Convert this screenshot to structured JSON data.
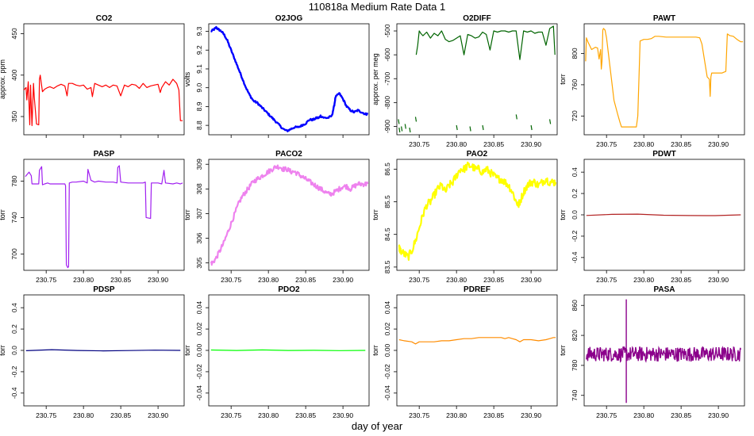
{
  "figure": {
    "title": "110818a   Medium Rate Data 1",
    "xlabel": "day of year"
  },
  "colors": {
    "CO2": "#ff0000",
    "O2JOG": "#0000ff",
    "O2DIFF": "#006400",
    "PAWT": "#ffa500",
    "PASP": "#a020f0",
    "PACO2": "#ee82ee",
    "PAO2": "#ffff00",
    "PDWT": "#b22222",
    "PDSP": "#000080",
    "PDO2": "#00ff00",
    "PDREF": "#ff8c00",
    "PASA": "#8b008b"
  },
  "chart_data": [
    {
      "id": "CO2",
      "type": "line",
      "title": "CO2",
      "ylabel": "approx. ppm",
      "color": "#ff0000",
      "xlim": [
        230.72,
        230.935
      ],
      "ylim": [
        328,
        462
      ],
      "xticks": [
        230.75,
        230.8,
        230.85,
        230.9
      ],
      "yticks": [
        350,
        400,
        450
      ],
      "xticks_labeled": false,
      "x": [
        230.72,
        230.723,
        230.724,
        230.726,
        230.728,
        230.729,
        230.731,
        230.733,
        230.734,
        230.737,
        230.74,
        230.741,
        230.742,
        230.745,
        230.748,
        230.752,
        230.755,
        230.76,
        230.765,
        230.77,
        230.775,
        230.778,
        230.78,
        230.785,
        230.79,
        230.795,
        230.8,
        230.805,
        230.81,
        230.812,
        230.815,
        230.82,
        230.825,
        230.83,
        230.835,
        230.84,
        230.845,
        230.85,
        230.855,
        230.86,
        230.865,
        230.87,
        230.875,
        230.88,
        230.885,
        230.89,
        230.895,
        230.9,
        230.903,
        230.905,
        230.91,
        230.915,
        230.92,
        230.925,
        230.928,
        230.93,
        230.933
      ],
      "y": [
        382,
        385,
        370,
        392,
        340,
        388,
        339,
        390,
        373,
        341,
        340,
        395,
        400,
        380,
        383,
        385,
        386,
        384,
        387,
        389,
        387,
        375,
        390,
        390,
        388,
        387,
        388,
        383,
        385,
        374,
        390,
        388,
        386,
        388,
        385,
        388,
        387,
        375,
        388,
        386,
        389,
        388,
        384,
        390,
        385,
        387,
        388,
        389,
        379,
        385,
        392,
        388,
        395,
        390,
        382,
        345,
        345
      ]
    },
    {
      "id": "O2JOG",
      "type": "line",
      "title": "O2JOG",
      "ylabel": "volts",
      "color": "#0000ff",
      "xlim": [
        230.72,
        230.935
      ],
      "ylim": [
        8.75,
        9.34
      ],
      "xticks": [
        230.75,
        230.8,
        230.85,
        230.9
      ],
      "yticks": [
        8.8,
        8.9,
        9.0,
        9.1,
        9.2,
        9.3
      ],
      "xticks_labeled": false,
      "x": [
        230.723,
        230.727,
        230.73,
        230.733,
        230.737,
        230.741,
        230.745,
        230.75,
        230.755,
        230.76,
        230.765,
        230.77,
        230.775,
        230.78,
        230.785,
        230.79,
        230.795,
        230.8,
        230.805,
        230.81,
        230.815,
        230.82,
        230.825,
        230.83,
        230.835,
        230.84,
        230.845,
        230.85,
        230.855,
        230.86,
        230.865,
        230.868,
        230.87,
        230.875,
        230.88,
        230.885,
        230.888,
        230.89,
        230.895,
        230.9,
        230.905,
        230.91,
        230.915,
        230.92,
        230.925,
        230.93,
        230.933
      ],
      "y": [
        9.3,
        9.31,
        9.32,
        9.31,
        9.3,
        9.28,
        9.25,
        9.2,
        9.15,
        9.1,
        9.05,
        9.0,
        8.96,
        8.93,
        8.92,
        8.9,
        8.88,
        8.86,
        8.84,
        8.82,
        8.8,
        8.78,
        8.77,
        8.78,
        8.79,
        8.79,
        8.8,
        8.81,
        8.83,
        8.83,
        8.84,
        8.84,
        8.85,
        8.84,
        8.84,
        8.85,
        8.9,
        8.95,
        8.97,
        8.94,
        8.9,
        8.88,
        8.87,
        8.88,
        8.87,
        8.86,
        8.86
      ]
    },
    {
      "id": "O2DIFF",
      "type": "line",
      "title": "O2DIFF",
      "ylabel": "approx. per meg",
      "color": "#006400",
      "xlim": [
        230.72,
        230.935
      ],
      "ylim": [
        -935,
        -470
      ],
      "xticks": [
        230.75,
        230.8,
        230.85,
        230.9
      ],
      "yticks": [
        -900,
        -800,
        -700,
        -600,
        -500
      ],
      "xticks_labeled": true,
      "x": [
        230.746,
        230.748,
        230.75,
        230.752,
        230.755,
        230.76,
        230.765,
        230.77,
        230.775,
        230.78,
        230.785,
        230.79,
        230.795,
        230.8,
        230.805,
        230.81,
        230.815,
        230.82,
        230.825,
        230.83,
        230.835,
        230.84,
        230.845,
        230.85,
        230.855,
        230.86,
        230.865,
        230.87,
        230.875,
        230.88,
        230.885,
        230.89,
        230.895,
        230.9,
        230.905,
        230.91,
        230.915,
        230.92,
        230.925,
        230.93,
        230.932
      ],
      "y": [
        -600,
        -560,
        -500,
        -510,
        -520,
        -505,
        -530,
        -510,
        -520,
        -500,
        -535,
        -545,
        -540,
        -530,
        -520,
        -600,
        -515,
        -520,
        -530,
        -525,
        -505,
        -515,
        -580,
        -500,
        -505,
        -500,
        -500,
        -505,
        -500,
        -500,
        -620,
        -500,
        -505,
        -500,
        -510,
        -505,
        -505,
        -560,
        -490,
        -480,
        -600
      ]
    },
    {
      "id": "PAWT",
      "type": "line",
      "title": "PAWT",
      "ylabel": "torr",
      "color": "#ffa500",
      "xlim": [
        230.72,
        230.935
      ],
      "ylim": [
        696,
        838
      ],
      "xticks": [
        230.75,
        230.8,
        230.85,
        230.9
      ],
      "yticks": [
        720,
        760,
        800
      ],
      "xticks_labeled": true,
      "x": [
        230.722,
        230.723,
        230.725,
        230.73,
        230.735,
        230.738,
        230.74,
        230.742,
        230.743,
        230.744,
        230.745,
        230.746,
        230.748,
        230.75,
        230.755,
        230.76,
        230.765,
        230.768,
        230.77,
        230.78,
        230.79,
        230.792,
        230.795,
        230.8,
        230.805,
        230.81,
        230.815,
        230.82,
        230.83,
        230.85,
        230.87,
        230.875,
        230.878,
        230.885,
        230.888,
        230.889,
        230.89,
        230.891,
        230.9,
        230.905,
        230.91,
        230.912,
        230.915,
        230.92,
        230.925,
        230.93,
        230.933
      ],
      "y": [
        790,
        820,
        815,
        805,
        808,
        807,
        793,
        805,
        780,
        790,
        830,
        832,
        830,
        820,
        780,
        740,
        722,
        712,
        706,
        706,
        706,
        720,
        816,
        818,
        818,
        819,
        822,
        822,
        821,
        821,
        821,
        820,
        812,
        770,
        767,
        745,
        770,
        775,
        775,
        775,
        777,
        825,
        823,
        822,
        818,
        815,
        815
      ]
    },
    {
      "id": "PASP",
      "type": "line",
      "title": "PASP",
      "ylabel": "torr",
      "color": "#a020f0",
      "xlim": [
        230.72,
        230.935
      ],
      "ylim": [
        682,
        804
      ],
      "xticks": [
        230.75,
        230.8,
        230.85,
        230.9
      ],
      "yticks": [
        700,
        740,
        780
      ],
      "xticks_labeled": true,
      "x": [
        230.722,
        230.725,
        230.727,
        230.73,
        230.731,
        230.735,
        230.74,
        230.741,
        230.744,
        230.745,
        230.748,
        230.752,
        230.755,
        230.76,
        230.77,
        230.775,
        230.776,
        230.777,
        230.779,
        230.78,
        230.781,
        230.785,
        230.79,
        230.8,
        230.805,
        230.806,
        230.81,
        230.815,
        230.82,
        230.83,
        230.84,
        230.845,
        230.846,
        230.848,
        230.85,
        230.86,
        230.87,
        230.88,
        230.883,
        230.884,
        230.89,
        230.891,
        230.9,
        230.905,
        230.908,
        230.91,
        230.92,
        230.925,
        230.93,
        230.933
      ],
      "y": [
        785,
        788,
        790,
        786,
        777,
        777,
        777,
        792,
        796,
        776,
        777,
        778,
        777,
        777,
        777,
        777,
        775,
        688,
        685,
        686,
        778,
        779,
        779,
        780,
        778,
        793,
        781,
        779,
        780,
        779,
        779,
        778,
        795,
        797,
        779,
        778,
        778,
        778,
        779,
        740,
        739,
        778,
        778,
        777,
        792,
        778,
        777,
        778,
        777,
        778
      ]
    },
    {
      "id": "PACO2",
      "type": "line",
      "title": "PACO2",
      "ylabel": "torr",
      "color": "#ee82ee",
      "xlim": [
        230.72,
        230.935
      ],
      "ylim": [
        304.7,
        309.2
      ],
      "xticks": [
        230.75,
        230.8,
        230.85,
        230.9
      ],
      "yticks": [
        305,
        306,
        307,
        308,
        309
      ],
      "xticks_labeled": true,
      "x": [
        230.723,
        230.725,
        230.73,
        230.735,
        230.74,
        230.745,
        230.75,
        230.755,
        230.76,
        230.765,
        230.77,
        230.775,
        230.78,
        230.785,
        230.79,
        230.795,
        230.8,
        230.805,
        230.81,
        230.815,
        230.82,
        230.825,
        230.83,
        230.835,
        230.84,
        230.845,
        230.85,
        230.855,
        230.86,
        230.865,
        230.87,
        230.875,
        230.88,
        230.885,
        230.89,
        230.895,
        230.9,
        230.905,
        230.91,
        230.915,
        230.92,
        230.925,
        230.93,
        230.933
      ],
      "y": [
        305.0,
        305.0,
        305.2,
        305.5,
        305.8,
        306.2,
        306.6,
        307.0,
        307.4,
        307.7,
        307.9,
        308.1,
        308.3,
        308.4,
        308.5,
        308.6,
        308.7,
        308.8,
        308.9,
        308.9,
        308.8,
        308.8,
        308.7,
        308.7,
        308.6,
        308.5,
        308.4,
        308.3,
        308.2,
        308.1,
        308.0,
        307.9,
        307.8,
        307.8,
        307.9,
        308.0,
        308.1,
        308.1,
        308.0,
        308.1,
        308.2,
        308.2,
        308.2,
        308.2
      ]
    },
    {
      "id": "PAO2",
      "type": "line",
      "title": "PAO2",
      "ylabel": "torr",
      "color": "#ffff00",
      "xlim": [
        230.72,
        230.935
      ],
      "ylim": [
        83.4,
        86.8
      ],
      "xticks": [
        230.75,
        230.8,
        230.85,
        230.9
      ],
      "yticks": [
        83.5,
        84.5,
        85.5,
        86.5
      ],
      "xticks_labeled": true,
      "x": [
        230.723,
        230.725,
        230.73,
        230.735,
        230.74,
        230.745,
        230.75,
        230.755,
        230.76,
        230.765,
        230.77,
        230.775,
        230.78,
        230.785,
        230.79,
        230.795,
        230.8,
        230.805,
        230.81,
        230.815,
        230.82,
        230.825,
        230.83,
        230.835,
        230.84,
        230.845,
        230.85,
        230.855,
        230.86,
        230.865,
        230.87,
        230.875,
        230.88,
        230.883,
        230.885,
        230.89,
        230.895,
        230.9,
        230.905,
        230.91,
        230.915,
        230.92,
        230.925,
        230.93,
        230.933
      ],
      "y": [
        84.1,
        84.0,
        83.9,
        83.8,
        84.0,
        84.3,
        84.7,
        85.1,
        85.4,
        85.5,
        85.7,
        85.9,
        86.0,
        85.8,
        86.0,
        86.1,
        86.3,
        86.5,
        86.5,
        86.6,
        86.6,
        86.5,
        86.5,
        86.4,
        86.5,
        86.4,
        86.3,
        86.2,
        86.2,
        86.1,
        86.0,
        85.8,
        85.5,
        85.4,
        85.5,
        85.8,
        86.0,
        86.1,
        86.1,
        86.0,
        86.1,
        86.2,
        86.1,
        86.1,
        86.1
      ]
    },
    {
      "id": "PDWT",
      "type": "line",
      "title": "PDWT",
      "ylabel": "torr",
      "color": "#b22222",
      "xlim": [
        230.72,
        230.935
      ],
      "ylim": [
        -0.52,
        0.52
      ],
      "xticks": [
        230.75,
        230.8,
        230.85,
        230.9
      ],
      "yticks": [
        -0.4,
        -0.2,
        0.0,
        0.2,
        0.4
      ],
      "xticks_labeled": true,
      "x": [
        230.723,
        230.93
      ],
      "y": [
        0.0,
        0.0
      ]
    },
    {
      "id": "PDSP",
      "type": "line",
      "title": "PDSP",
      "ylabel": "torr",
      "color": "#000080",
      "xlim": [
        230.72,
        230.935
      ],
      "ylim": [
        -0.52,
        0.52
      ],
      "xticks": [
        230.75,
        230.8,
        230.85,
        230.9
      ],
      "yticks": [
        -0.4,
        -0.2,
        0.0,
        0.2,
        0.4
      ],
      "xticks_labeled": true,
      "x": [
        230.723,
        230.93
      ],
      "y": [
        0.0,
        0.0
      ]
    },
    {
      "id": "PDO2",
      "type": "line",
      "title": "PDO2",
      "ylabel": "torr",
      "color": "#00ff00",
      "xlim": [
        230.72,
        230.935
      ],
      "ylim": [
        -0.052,
        0.052
      ],
      "xticks": [
        230.75,
        230.8,
        230.85,
        230.9
      ],
      "yticks": [
        -0.04,
        -0.02,
        0.0,
        0.02,
        0.04
      ],
      "xticks_labeled": true,
      "x": [
        230.723,
        230.93
      ],
      "y": [
        0.0,
        0.0
      ]
    },
    {
      "id": "PDREF",
      "type": "line",
      "title": "PDREF",
      "ylabel": "torr",
      "color": "#ff8c00",
      "xlim": [
        230.72,
        230.935
      ],
      "ylim": [
        -0.052,
        0.052
      ],
      "xticks": [
        230.75,
        230.8,
        230.85,
        230.9
      ],
      "yticks": [
        -0.04,
        -0.02,
        0.0,
        0.02,
        0.04
      ],
      "xticks_labeled": true,
      "x": [
        230.723,
        230.73,
        230.74,
        230.745,
        230.75,
        230.76,
        230.77,
        230.78,
        230.79,
        230.8,
        230.81,
        230.82,
        230.83,
        230.84,
        230.85,
        230.86,
        230.865,
        230.87,
        230.875,
        230.88,
        230.885,
        230.89,
        230.9,
        230.91,
        230.92,
        230.925,
        230.93,
        230.933
      ],
      "y": [
        0.01,
        0.009,
        0.008,
        0.006,
        0.008,
        0.008,
        0.008,
        0.009,
        0.009,
        0.01,
        0.011,
        0.011,
        0.012,
        0.012,
        0.012,
        0.012,
        0.011,
        0.012,
        0.011,
        0.01,
        0.008,
        0.01,
        0.01,
        0.009,
        0.01,
        0.011,
        0.012,
        0.012
      ]
    },
    {
      "id": "PASA",
      "type": "line",
      "title": "PASA",
      "ylabel": "torr",
      "color": "#8b008b",
      "xlim": [
        230.72,
        230.935
      ],
      "ylim": [
        726,
        874
      ],
      "xticks": [
        230.75,
        230.8,
        230.85,
        230.9
      ],
      "yticks": [
        740,
        780,
        820,
        860
      ],
      "xticks_labeled": true,
      "x": [
        230.723,
        230.776,
        230.7765,
        230.777,
        230.7775,
        230.93
      ],
      "y": [
        795,
        795,
        868,
        795,
        730,
        795
      ]
    }
  ]
}
